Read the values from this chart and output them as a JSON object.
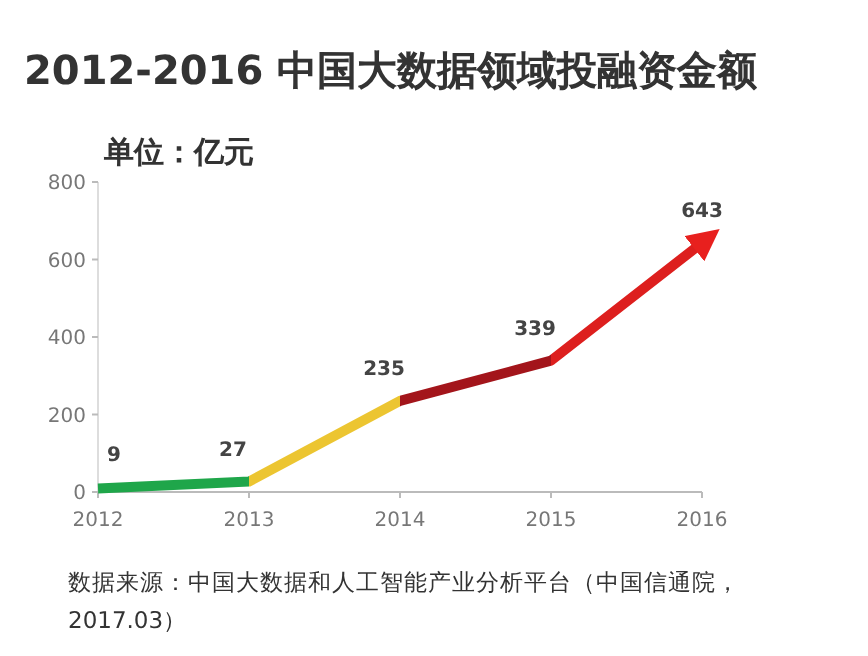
{
  "chart_data": {
    "type": "line",
    "title": "2012-2016 中国大数据领域投融资金额",
    "subtitle": "单位：亿元",
    "x": [
      2012,
      2013,
      2014,
      2015,
      2016
    ],
    "series": [
      {
        "values": [
          9,
          27,
          235,
          339,
          643
        ],
        "colors": [
          "#1fa64a",
          "#ecc531",
          "#a3151b",
          "#dd1f1e",
          "#e8201e"
        ]
      }
    ],
    "xlim": [
      2012,
      2016
    ],
    "xticks": [
      2012,
      2013,
      2014,
      2015,
      2016
    ],
    "ylim": [
      0,
      800
    ],
    "yticks": [
      0,
      200,
      400,
      600,
      800
    ],
    "data_labels": true,
    "line_style": "solid",
    "annotations": [
      "数据来源：中国大数据和人工智能产业分析平台（中国信通院，2017.03）"
    ]
  }
}
